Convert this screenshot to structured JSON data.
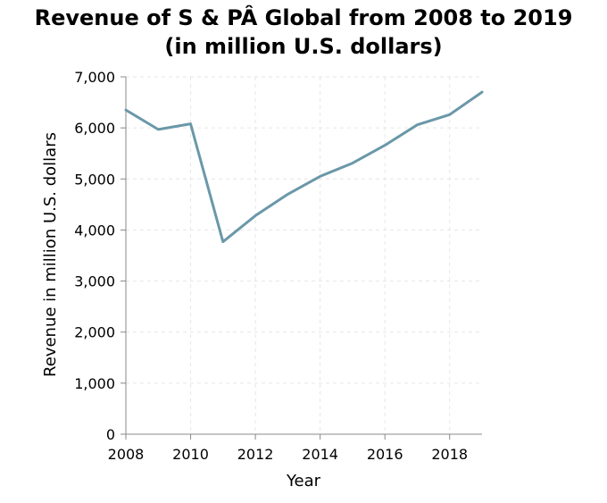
{
  "chart_data": {
    "type": "line",
    "title_lines": [
      "Revenue of S & PÂ Global from 2008 to 2019",
      "(in million U.S. dollars)"
    ],
    "xlabel": "Year",
    "ylabel": "Revenue in million U.S. dollars",
    "x": [
      2008,
      2009,
      2010,
      2011,
      2012,
      2013,
      2014,
      2015,
      2016,
      2017,
      2018,
      2019
    ],
    "series": [
      {
        "values": [
          6350,
          5970,
          6080,
          3770,
          4280,
          4700,
          5050,
          5310,
          5660,
          6060,
          6260,
          6700
        ],
        "color": "#6a98a8"
      }
    ],
    "xlim": [
      2008,
      2019
    ],
    "ylim": [
      0,
      7000
    ],
    "x_ticks": [
      2008,
      2010,
      2012,
      2014,
      2016,
      2018
    ],
    "x_tick_labels": [
      "2008",
      "2010",
      "2012",
      "2014",
      "2016",
      "2018"
    ],
    "y_ticks": [
      0,
      1000,
      2000,
      3000,
      4000,
      5000,
      6000,
      7000
    ],
    "y_tick_labels": [
      "0",
      "1,000",
      "2,000",
      "3,000",
      "4,000",
      "5,000",
      "6,000",
      "7,000"
    ],
    "grid": true,
    "legend": "none"
  }
}
